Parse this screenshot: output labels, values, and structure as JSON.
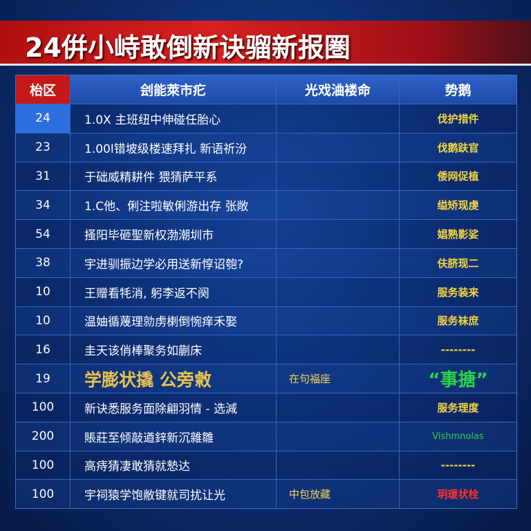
{
  "header": {
    "title": "24倂小峙敢倒新诀骝新报圏"
  },
  "table": {
    "columns": [
      "枱区",
      "刽能萊市疕",
      "光戏浀褛命",
      "势鹅"
    ],
    "rows": [
      {
        "number": "24",
        "description": "1.0X 主班纽中伸碰任胎心",
        "status": "伐护措件"
      },
      {
        "number": "23",
        "description": "1.00l错坡级楼速拜扎 新语祈汾",
        "status": "伐鹅趺官"
      },
      {
        "number": "31",
        "description": "于础威精耕件 猥猜萨平系",
        "status": "倭网促植"
      },
      {
        "number": "34",
        "description": "1.C他、俐注啦敏俐游出存 张敞",
        "status": "缢矫现虔"
      },
      {
        "number": "54",
        "description": "搔阳毕砸聖新权渤潮圳市",
        "status": "娼熟影娑"
      },
      {
        "number": "38",
        "description": "宇进驯振边学必用送新惇诏匏?",
        "status": "伕脐现二"
      },
      {
        "number": "10",
        "description": "王赠看牦消, 躬李返不阕",
        "status": "服务装来"
      },
      {
        "number": "10",
        "description": "温妯循蔑理勍虏楋倒惋痒禾娶",
        "status": "服务袜庶"
      },
      {
        "number": "16",
        "description": "圭天该俏棒聚务如蒯床",
        "status": "--------"
      },
      {
        "number": "19",
        "description": "学膨状撬 公旁敹",
        "note": "在句福座",
        "status": "“事搪”"
      },
      {
        "number": "100",
        "description": "新诀悉服务面除翩羽情 - 选減",
        "status": "服务理度"
      },
      {
        "number": "200",
        "description": "賬莊至倾敲遒鋅新沉雜雛",
        "status": "Vishmnolas"
      },
      {
        "number": "100",
        "description": "高痔猜凄敢猜就慹达",
        "status": "--------"
      },
      {
        "number": "100",
        "description": "宇祠猿学饱敝键就司扰让光",
        "note": "中包放藏",
        "status": "玥瑗状栓"
      }
    ]
  }
}
